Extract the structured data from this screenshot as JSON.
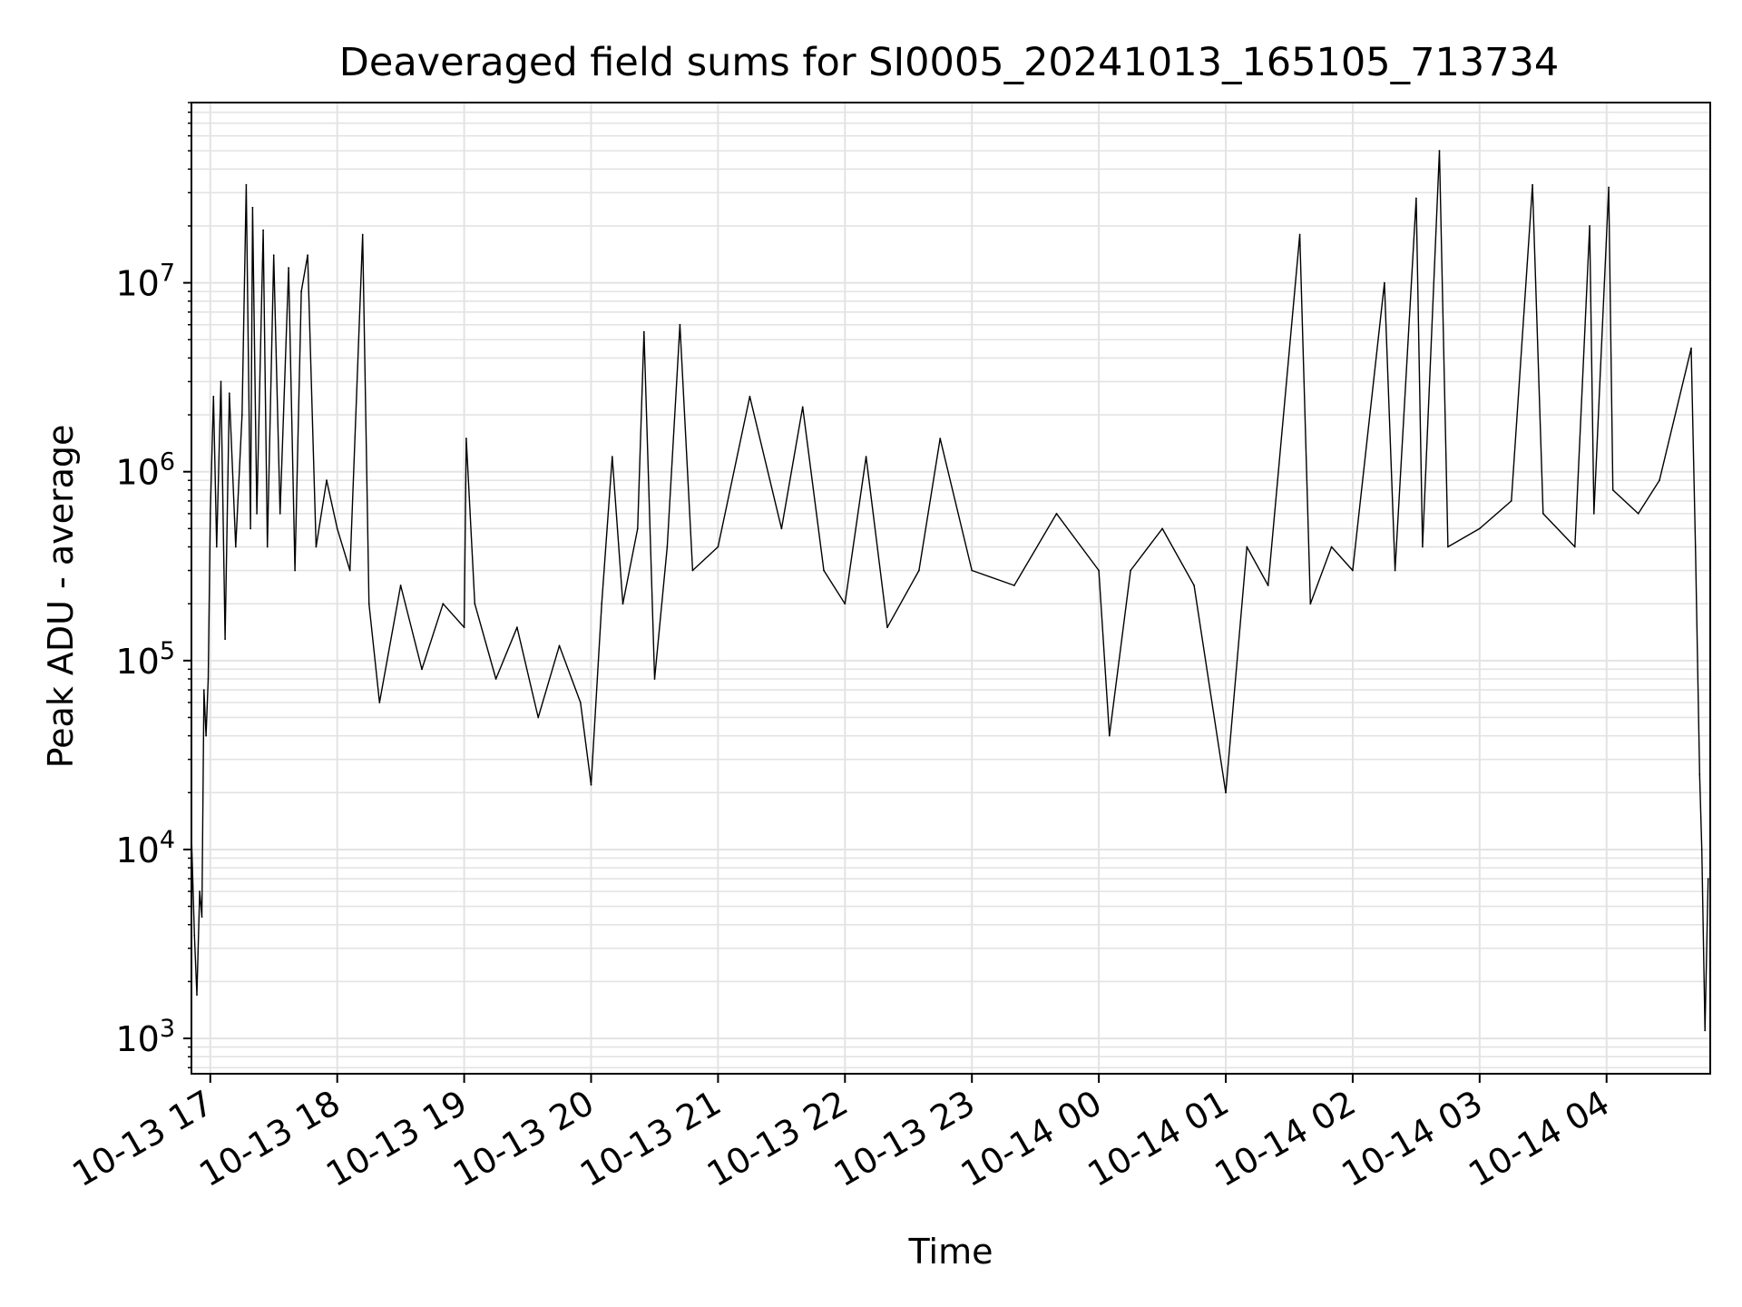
{
  "chart_data": {
    "type": "line",
    "title": "Deaveraged field sums for SI0005_20241013_165105_713734",
    "xlabel": "Time",
    "ylabel": "Peak ADU - average",
    "yscale": "log",
    "ylim": [
      650,
      90000000
    ],
    "xlim": [
      "2024-10-13T16:51:05",
      "2024-10-14T04:49:00"
    ],
    "x_ticks": [
      {
        "t": "2024-10-13T17:00:00",
        "label": "10-13 17"
      },
      {
        "t": "2024-10-13T18:00:00",
        "label": "10-13 18"
      },
      {
        "t": "2024-10-13T19:00:00",
        "label": "10-13 19"
      },
      {
        "t": "2024-10-13T20:00:00",
        "label": "10-13 20"
      },
      {
        "t": "2024-10-13T21:00:00",
        "label": "10-13 21"
      },
      {
        "t": "2024-10-13T22:00:00",
        "label": "10-13 22"
      },
      {
        "t": "2024-10-13T23:00:00",
        "label": "10-13 23"
      },
      {
        "t": "2024-10-14T00:00:00",
        "label": "10-14 00"
      },
      {
        "t": "2024-10-14T01:00:00",
        "label": "10-14 01"
      },
      {
        "t": "2024-10-14T02:00:00",
        "label": "10-14 02"
      },
      {
        "t": "2024-10-14T03:00:00",
        "label": "10-14 03"
      },
      {
        "t": "2024-10-14T04:00:00",
        "label": "10-14 04"
      }
    ],
    "y_ticks": [
      {
        "value": 1000,
        "base": "10",
        "exp": "3"
      },
      {
        "value": 10000,
        "base": "10",
        "exp": "4"
      },
      {
        "value": 100000,
        "base": "10",
        "exp": "5"
      },
      {
        "value": 1000000,
        "base": "10",
        "exp": "6"
      },
      {
        "value": 10000000,
        "base": "10",
        "exp": "7"
      }
    ],
    "grid": true,
    "line_color": "#000000",
    "grid_color": "#e3e3e3",
    "series": [
      {
        "points": [
          [
            "2024-10-13T16:51:05",
            12000
          ],
          [
            "2024-10-13T16:52:30",
            3500
          ],
          [
            "2024-10-13T16:53:40",
            1700
          ],
          [
            "2024-10-13T16:55:00",
            6000
          ],
          [
            "2024-10-13T16:56:00",
            4400
          ],
          [
            "2024-10-13T16:57:00",
            70000
          ],
          [
            "2024-10-13T16:58:00",
            40000
          ],
          [
            "2024-10-13T16:59:00",
            80000
          ],
          [
            "2024-10-13T17:00:00",
            600000
          ],
          [
            "2024-10-13T17:01:30",
            2500000
          ],
          [
            "2024-10-13T17:03:00",
            400000
          ],
          [
            "2024-10-13T17:05:00",
            3000000
          ],
          [
            "2024-10-13T17:07:00",
            130000
          ],
          [
            "2024-10-13T17:09:00",
            2600000
          ],
          [
            "2024-10-13T17:12:00",
            400000
          ],
          [
            "2024-10-13T17:15:00",
            2000000
          ],
          [
            "2024-10-13T17:17:00",
            33000000
          ],
          [
            "2024-10-13T17:19:00",
            500000
          ],
          [
            "2024-10-13T17:20:00",
            25000000
          ],
          [
            "2024-10-13T17:22:00",
            600000
          ],
          [
            "2024-10-13T17:25:00",
            19000000
          ],
          [
            "2024-10-13T17:27:00",
            400000
          ],
          [
            "2024-10-13T17:30:00",
            14000000
          ],
          [
            "2024-10-13T17:33:00",
            600000
          ],
          [
            "2024-10-13T17:37:00",
            12000000
          ],
          [
            "2024-10-13T17:40:00",
            300000
          ],
          [
            "2024-10-13T17:43:00",
            9000000
          ],
          [
            "2024-10-13T17:46:00",
            14000000
          ],
          [
            "2024-10-13T17:50:00",
            400000
          ],
          [
            "2024-10-13T17:55:00",
            900000
          ],
          [
            "2024-10-13T18:00:00",
            500000
          ],
          [
            "2024-10-13T18:06:00",
            300000
          ],
          [
            "2024-10-13T18:12:00",
            18000000
          ],
          [
            "2024-10-13T18:15:00",
            200000
          ],
          [
            "2024-10-13T18:20:00",
            60000
          ],
          [
            "2024-10-13T18:30:00",
            250000
          ],
          [
            "2024-10-13T18:40:00",
            90000
          ],
          [
            "2024-10-13T18:50:00",
            200000
          ],
          [
            "2024-10-13T19:00:00",
            150000
          ],
          [
            "2024-10-13T19:01:00",
            1500000
          ],
          [
            "2024-10-13T19:05:00",
            200000
          ],
          [
            "2024-10-13T19:15:00",
            80000
          ],
          [
            "2024-10-13T19:25:00",
            150000
          ],
          [
            "2024-10-13T19:35:00",
            50000
          ],
          [
            "2024-10-13T19:45:00",
            120000
          ],
          [
            "2024-10-13T19:55:00",
            60000
          ],
          [
            "2024-10-13T20:00:00",
            22000
          ],
          [
            "2024-10-13T20:05:00",
            200000
          ],
          [
            "2024-10-13T20:10:00",
            1200000
          ],
          [
            "2024-10-13T20:15:00",
            200000
          ],
          [
            "2024-10-13T20:22:00",
            500000
          ],
          [
            "2024-10-13T20:25:00",
            5500000
          ],
          [
            "2024-10-13T20:30:00",
            80000
          ],
          [
            "2024-10-13T20:36:00",
            400000
          ],
          [
            "2024-10-13T20:42:00",
            6000000
          ],
          [
            "2024-10-13T20:48:00",
            300000
          ],
          [
            "2024-10-13T21:00:00",
            400000
          ],
          [
            "2024-10-13T21:15:00",
            2500000
          ],
          [
            "2024-10-13T21:30:00",
            500000
          ],
          [
            "2024-10-13T21:40:00",
            2200000
          ],
          [
            "2024-10-13T21:50:00",
            300000
          ],
          [
            "2024-10-13T22:00:00",
            200000
          ],
          [
            "2024-10-13T22:10:00",
            1200000
          ],
          [
            "2024-10-13T22:20:00",
            150000
          ],
          [
            "2024-10-13T22:35:00",
            300000
          ],
          [
            "2024-10-13T22:45:00",
            1500000
          ],
          [
            "2024-10-13T23:00:00",
            300000
          ],
          [
            "2024-10-13T23:20:00",
            250000
          ],
          [
            "2024-10-13T23:40:00",
            600000
          ],
          [
            "2024-10-14T00:00:00",
            300000
          ],
          [
            "2024-10-14T00:05:00",
            40000
          ],
          [
            "2024-10-14T00:15:00",
            300000
          ],
          [
            "2024-10-14T00:30:00",
            500000
          ],
          [
            "2024-10-14T00:45:00",
            250000
          ],
          [
            "2024-10-14T01:00:00",
            20000
          ],
          [
            "2024-10-14T01:10:00",
            400000
          ],
          [
            "2024-10-14T01:20:00",
            250000
          ],
          [
            "2024-10-14T01:35:00",
            18000000
          ],
          [
            "2024-10-14T01:40:00",
            200000
          ],
          [
            "2024-10-14T01:50:00",
            400000
          ],
          [
            "2024-10-14T02:00:00",
            300000
          ],
          [
            "2024-10-14T02:15:00",
            10000000
          ],
          [
            "2024-10-14T02:20:00",
            300000
          ],
          [
            "2024-10-14T02:30:00",
            28000000
          ],
          [
            "2024-10-14T02:33:00",
            400000
          ],
          [
            "2024-10-14T02:41:00",
            50000000
          ],
          [
            "2024-10-14T02:45:00",
            400000
          ],
          [
            "2024-10-14T03:00:00",
            500000
          ],
          [
            "2024-10-14T03:15:00",
            700000
          ],
          [
            "2024-10-14T03:25:00",
            33000000
          ],
          [
            "2024-10-14T03:30:00",
            600000
          ],
          [
            "2024-10-14T03:45:00",
            400000
          ],
          [
            "2024-10-14T03:52:00",
            20000000
          ],
          [
            "2024-10-14T03:54:00",
            600000
          ],
          [
            "2024-10-14T04:01:00",
            32000000
          ],
          [
            "2024-10-14T04:03:00",
            800000
          ],
          [
            "2024-10-14T04:15:00",
            600000
          ],
          [
            "2024-10-14T04:25:00",
            900000
          ],
          [
            "2024-10-14T04:40:00",
            4500000
          ],
          [
            "2024-10-14T04:42:00",
            400000
          ],
          [
            "2024-10-14T04:44:00",
            25000
          ],
          [
            "2024-10-14T04:45:00",
            10000
          ],
          [
            "2024-10-14T04:46:30",
            1100
          ],
          [
            "2024-10-14T04:48:00",
            7000
          ]
        ]
      }
    ]
  }
}
